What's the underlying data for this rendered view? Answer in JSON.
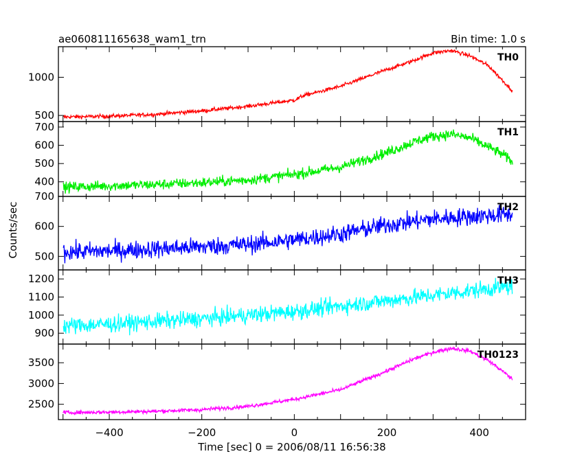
{
  "header": {
    "title": "ae060811165638_wam1_trn",
    "bin_time": "Bin time: 1.0 s"
  },
  "chart_data": {
    "type": "line",
    "xlabel": "Time [sec] 0 = 2006/08/11 16:56:38",
    "ylabel": "Counts/sec",
    "xlim": [
      -510,
      500
    ],
    "xticks": [
      -400,
      -200,
      0,
      200,
      400
    ],
    "xtick_labels": [
      "−400",
      "−200",
      "0",
      "200",
      "400"
    ],
    "x_range": [
      -500,
      472
    ],
    "panels": [
      {
        "name": "TH0",
        "color": "#ff0000",
        "ylim": [
          420,
          1400
        ],
        "yticks": [
          500,
          1000
        ],
        "noise": 25,
        "points": [
          [
            -500,
            480
          ],
          [
            -400,
            490
          ],
          [
            -300,
            515
          ],
          [
            -200,
            560
          ],
          [
            -100,
            620
          ],
          [
            0,
            700
          ],
          [
            20,
            760
          ],
          [
            100,
            880
          ],
          [
            200,
            1100
          ],
          [
            250,
            1200
          ],
          [
            300,
            1320
          ],
          [
            340,
            1350
          ],
          [
            380,
            1280
          ],
          [
            420,
            1150
          ],
          [
            450,
            960
          ],
          [
            472,
            820
          ]
        ]
      },
      {
        "name": "TH1",
        "color": "#00ee00",
        "ylim": [
          320,
          730
        ],
        "yticks": [
          400,
          500,
          600,
          700
        ],
        "noise": 28,
        "points": [
          [
            -500,
            370
          ],
          [
            -400,
            378
          ],
          [
            -300,
            385
          ],
          [
            -200,
            395
          ],
          [
            -100,
            410
          ],
          [
            0,
            440
          ],
          [
            100,
            480
          ],
          [
            200,
            560
          ],
          [
            260,
            620
          ],
          [
            300,
            650
          ],
          [
            340,
            660
          ],
          [
            380,
            640
          ],
          [
            420,
            590
          ],
          [
            450,
            550
          ],
          [
            472,
            510
          ]
        ]
      },
      {
        "name": "TH2",
        "color": "#0000ff",
        "ylim": [
          455,
          700
        ],
        "yticks": [
          500,
          600,
          700
        ],
        "noise": 30,
        "points": [
          [
            -500,
            515
          ],
          [
            -400,
            518
          ],
          [
            -300,
            525
          ],
          [
            -200,
            532
          ],
          [
            -100,
            540
          ],
          [
            0,
            555
          ],
          [
            100,
            575
          ],
          [
            200,
            605
          ],
          [
            300,
            625
          ],
          [
            400,
            635
          ],
          [
            472,
            640
          ]
        ]
      },
      {
        "name": "TH3",
        "color": "#00ffff",
        "ylim": [
          840,
          1250
        ],
        "yticks": [
          900,
          1000,
          1100,
          1200
        ],
        "noise": 45,
        "points": [
          [
            -500,
            940
          ],
          [
            -400,
            950
          ],
          [
            -300,
            965
          ],
          [
            -200,
            980
          ],
          [
            -100,
            1000
          ],
          [
            0,
            1020
          ],
          [
            100,
            1050
          ],
          [
            200,
            1080
          ],
          [
            300,
            1110
          ],
          [
            400,
            1140
          ],
          [
            472,
            1160
          ]
        ]
      },
      {
        "name": "TH0123",
        "color": "#ff00ff",
        "ylim": [
          2130,
          3950
        ],
        "yticks": [
          2500,
          3000,
          3500
        ],
        "noise": 45,
        "points": [
          [
            -500,
            2300
          ],
          [
            -400,
            2310
          ],
          [
            -300,
            2330
          ],
          [
            -200,
            2370
          ],
          [
            -100,
            2450
          ],
          [
            0,
            2620
          ],
          [
            100,
            2850
          ],
          [
            200,
            3300
          ],
          [
            260,
            3600
          ],
          [
            300,
            3750
          ],
          [
            340,
            3850
          ],
          [
            380,
            3780
          ],
          [
            420,
            3550
          ],
          [
            450,
            3300
          ],
          [
            472,
            3100
          ]
        ]
      }
    ]
  }
}
